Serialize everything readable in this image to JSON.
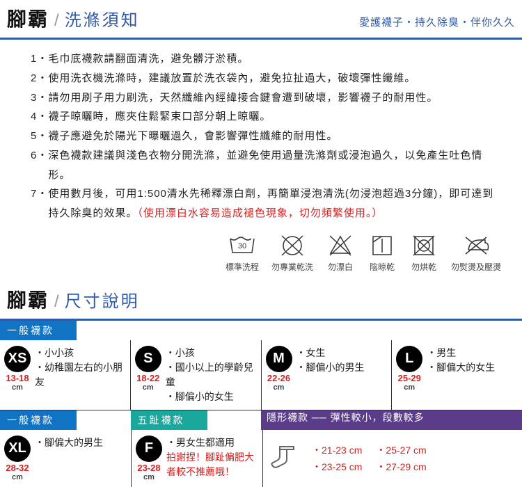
{
  "brand": "腳霸",
  "section1": {
    "title": "洗滌須知",
    "tagline": "愛護襪子・持久除臭・伴你久久"
  },
  "instructions": [
    {
      "n": "1・",
      "t": "毛巾底襪款請翻面清洗，避免髒汙淤積。"
    },
    {
      "n": "2・",
      "t": "使用洗衣機洗滌時，建議放置於洗衣袋內，避免拉扯過大，破壞彈性纖維。"
    },
    {
      "n": "3・",
      "t": "請勿用刷子用力刷洗，天然纖維內經緯接合鍵會遭到破壞，影響襪子的耐用性。"
    },
    {
      "n": "4・",
      "t": "襪子晾曬時，應夾住鬆緊束口部分朝上晾曬。"
    },
    {
      "n": "5・",
      "t": "襪子應避免於陽光下曝曬過久，會影響彈性纖維的耐用性。"
    },
    {
      "n": "6・",
      "t": "深色襪款建議與淺色衣物分開洗滌，並避免使用過量洗滌劑或浸泡過久，以免產生吐色情形。"
    },
    {
      "n": "7・",
      "t": "使用數月後，可用1:500清水先稀釋漂白劑，再簡單浸泡清洗(勿浸泡超過3分鐘)，即可達到持久除臭的效果。",
      "note": "（使用漂白水容易造成褪色現象，切勿頻繁使用。）"
    }
  ],
  "care": [
    {
      "n": "wash-30",
      "l": "標準洗程"
    },
    {
      "n": "no-dryclean",
      "l": "勿專業乾洗"
    },
    {
      "n": "no-bleach",
      "l": "勿漂白"
    },
    {
      "n": "shade-dry",
      "l": "陰晾乾"
    },
    {
      "n": "no-tumble",
      "l": "勿烘乾"
    },
    {
      "n": "no-iron",
      "l": "勿熨燙及壓燙"
    }
  ],
  "section2": {
    "title": "尺寸說明"
  },
  "bands": {
    "general": "一般襪款",
    "toe": "五趾襪款",
    "invisible": "隱形襪款 ── 彈性較小，段數較多"
  },
  "sizes_r1": [
    {
      "code": "XS",
      "range": "13-18",
      "desc": [
        "小小孩",
        "幼稚園左右的小朋友"
      ]
    },
    {
      "code": "S",
      "range": "18-22",
      "desc": [
        "小孩",
        "國小以上的學齡兒童",
        "腳偏小的女生"
      ]
    },
    {
      "code": "M",
      "range": "22-26",
      "desc": [
        "女生",
        "腳偏小的男生"
      ]
    },
    {
      "code": "L",
      "range": "25-29",
      "desc": [
        "男生",
        "腳偏大的女生"
      ]
    }
  ],
  "sizes_r2": {
    "xl": {
      "code": "XL",
      "range": "28-32",
      "desc": [
        "腳偏大的男生"
      ]
    },
    "f": {
      "code": "F",
      "range": "23-28",
      "desc": "・男女生都適用",
      "warn": "拍謝捏！腳趾偏肥大者較不推薦哦！"
    },
    "inv1": [
      "・21-23 cm",
      "・23-25 cm"
    ],
    "inv2": [
      "・25-27 cm",
      "・27-29 cm"
    ]
  }
}
